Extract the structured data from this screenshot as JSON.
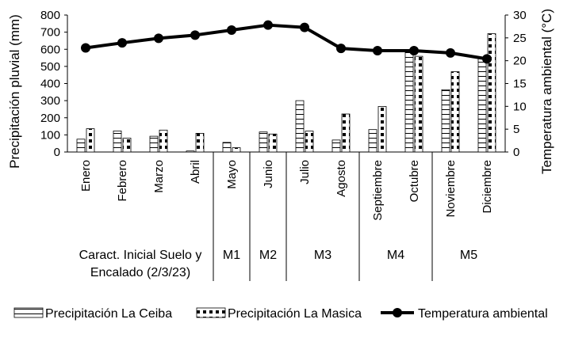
{
  "chart_data": {
    "type": "bar",
    "categories": [
      "Enero",
      "Febrero",
      "Marzo",
      "Abril",
      "Mayo",
      "Junio",
      "Julio",
      "Agosto",
      "Septiembre",
      "Octubre",
      "Noviembre",
      "Diciembre"
    ],
    "series": [
      {
        "name": "Precipitación La Ceiba",
        "type": "bar",
        "axis": "left",
        "values": [
          75,
          123,
          92,
          6,
          56,
          117,
          300,
          70,
          131,
          589,
          364,
          547
        ]
      },
      {
        "name": "Precipitación La Masica",
        "type": "bar",
        "axis": "left",
        "values": [
          136,
          81,
          128,
          109,
          25,
          105,
          122,
          222,
          266,
          559,
          469,
          691
        ]
      },
      {
        "name": "Temperatura ambiental",
        "type": "line",
        "axis": "right",
        "values": [
          22.8,
          23.9,
          24.9,
          25.6,
          26.7,
          27.8,
          27.3,
          22.7,
          22.2,
          22.2,
          21.7,
          20.4
        ]
      }
    ],
    "ylabel": "Precipitación pluvial (mm)",
    "y2label": "Temperatura ambiental (°C)",
    "ylim": [
      0,
      800
    ],
    "y2lim": [
      0,
      30
    ],
    "yticks": [
      "0",
      "100",
      "200",
      "300",
      "400",
      "500",
      "600",
      "700",
      "800"
    ],
    "y2ticks": [
      "0",
      "5",
      "10",
      "15",
      "20",
      "25",
      "30"
    ],
    "groups": [
      {
        "label": "Caract. Inicial Suelo y",
        "label2": "Encalado (2/3/23)",
        "start": 0,
        "end": 3
      },
      {
        "label": "M1",
        "start": 4,
        "end": 4
      },
      {
        "label": "M2",
        "start": 5,
        "end": 5
      },
      {
        "label": "M3",
        "start": 6,
        "end": 7
      },
      {
        "label": "M4",
        "start": 8,
        "end": 9
      },
      {
        "label": "M5",
        "start": 10,
        "end": 11
      }
    ],
    "legend_position": "bottom",
    "grid": false
  }
}
